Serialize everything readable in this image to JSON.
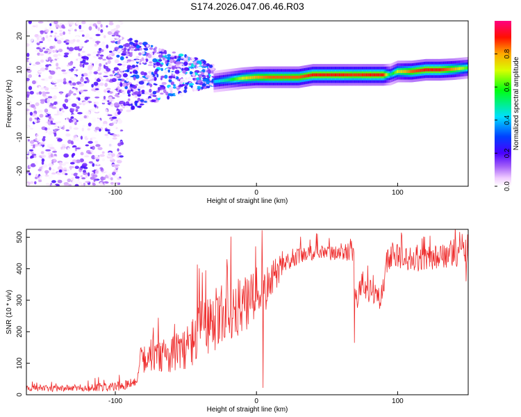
{
  "title": "S174.2026.047.06.46.R03",
  "chart_data": [
    {
      "type": "heatmap",
      "xlabel": "Height of straight line (km)",
      "ylabel": "Frequency (Hz)",
      "xlim": [
        -163,
        150
      ],
      "ylim": [
        -24.5,
        24.5
      ],
      "xticks": [
        -100,
        0,
        100
      ],
      "xtick_labels": [
        "-100",
        "0",
        "100"
      ],
      "yticks": [
        -20,
        -10,
        0,
        10,
        20
      ],
      "ytick_labels": [
        "-20",
        "-10",
        "0",
        "10",
        "20"
      ],
      "colorbar": {
        "label": "Normalized spectral amplitude",
        "range": [
          0.0,
          1.0
        ],
        "ticks": [
          0.0,
          0.2,
          0.4,
          0.6,
          0.8
        ],
        "tick_labels": [
          "0.0",
          "0.2",
          "0.4",
          "0.6",
          "0.8"
        ]
      },
      "ridge": {
        "description": "peak frequency trace",
        "x": [
          -30,
          -20,
          -10,
          0,
          10,
          20,
          30,
          40,
          50,
          60,
          70,
          80,
          90,
          95,
          100,
          110,
          120,
          130,
          140,
          150
        ],
        "frequency": [
          6.5,
          7.0,
          7.5,
          7.8,
          7.8,
          7.8,
          7.8,
          8.5,
          8.5,
          8.5,
          8.5,
          8.5,
          8.5,
          8.6,
          9.5,
          9.5,
          10.0,
          10.0,
          10.2,
          10.6
        ],
        "amplitude": [
          0.4,
          0.5,
          0.7,
          0.8,
          0.85,
          0.85,
          0.85,
          0.9,
          0.9,
          0.9,
          0.88,
          0.9,
          0.9,
          0.5,
          0.7,
          0.85,
          0.9,
          0.9,
          0.8,
          0.6
        ]
      },
      "noise_regions": [
        {
          "x_range": [
            -163,
            -95
          ],
          "amplitude_max": 0.22,
          "description": "broadband noise"
        },
        {
          "x_range": [
            -100,
            -30
          ],
          "freq_range": [
            1,
            18
          ],
          "amplitude_max": 0.35,
          "description": "emerging signal"
        }
      ]
    },
    {
      "type": "line",
      "xlabel": "Height of straight line (km)",
      "ylabel": "SNR (10 * v/v)",
      "xlim": [
        -163,
        150
      ],
      "ylim": [
        0,
        525
      ],
      "xticks": [
        -100,
        0,
        100
      ],
      "xtick_labels": [
        "-100",
        "0",
        "100"
      ],
      "yticks": [
        0,
        100,
        200,
        300,
        400,
        500
      ],
      "ytick_labels": [
        "0",
        "100",
        "200",
        "300",
        "400",
        "500"
      ],
      "color": "#ee2a2a",
      "series": [
        {
          "name": "SNR",
          "envelope": {
            "x": [
              -163,
              -140,
              -120,
              -100,
              -90,
              -84,
              -83,
              -70,
              -60,
              -50,
              -40,
              -30,
              -20,
              -10,
              -5,
              0,
              3,
              5,
              8,
              15,
              20,
              30,
              40,
              50,
              60,
              69,
              70,
              72,
              75,
              80,
              85,
              88,
              90,
              92,
              95,
              100,
              110,
              120,
              130,
              140,
              150
            ],
            "mean": [
              20,
              20,
              22,
              25,
              35,
              40,
              110,
              120,
              130,
              150,
              190,
              230,
              270,
              280,
              290,
              305,
              330,
              310,
              350,
              390,
              420,
              440,
              450,
              450,
              450,
              450,
              330,
              310,
              350,
              330,
              310,
              300,
              350,
              420,
              440,
              440,
              430,
              430,
              440,
              440,
              460
            ],
            "spread": [
              10,
              10,
              12,
              15,
              15,
              15,
              40,
              50,
              60,
              70,
              100,
              110,
              100,
              90,
              90,
              100,
              60,
              90,
              60,
              50,
              30,
              25,
              25,
              25,
              25,
              25,
              40,
              40,
              40,
              40,
              40,
              40,
              40,
              40,
              40,
              40,
              40,
              40,
              40,
              40,
              40
            ]
          },
          "spikes": [
            {
              "x": 4,
              "y": 522
            },
            {
              "x": 4.8,
              "y": 22
            },
            {
              "x": -36,
              "y": 395
            },
            {
              "x": -21,
              "y": 430
            },
            {
              "x": 69.5,
              "y": 165
            },
            {
              "x": 148.5,
              "y": 360
            }
          ]
        }
      ]
    }
  ]
}
